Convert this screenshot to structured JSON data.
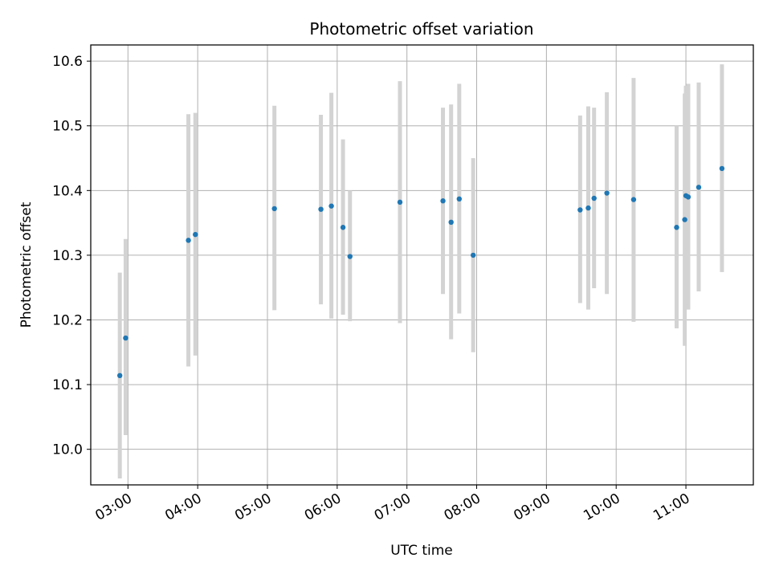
{
  "chart_data": {
    "type": "scatter",
    "title": "Photometric offset variation",
    "xlabel": "UTC time",
    "ylabel": "Photometric offset",
    "xlim": [
      "02:28",
      "11:58"
    ],
    "ylim": [
      9.945,
      10.625
    ],
    "grid": true,
    "x_ticks": [
      "03:00",
      "04:00",
      "05:00",
      "06:00",
      "07:00",
      "08:00",
      "09:00",
      "10:00",
      "11:00"
    ],
    "y_ticks": [
      10.0,
      10.1,
      10.2,
      10.3,
      10.4,
      10.5,
      10.6
    ],
    "y_tick_labels": [
      "10.0",
      "10.1",
      "10.2",
      "10.3",
      "10.4",
      "10.5",
      "10.6"
    ],
    "colors": {
      "point": "#1f77b4",
      "errorbar": "#d3d3d3",
      "grid": "#b0b0b0"
    },
    "points": [
      {
        "x": "02:53",
        "y": 10.114,
        "low": 9.955,
        "high": 10.273
      },
      {
        "x": "02:58",
        "y": 10.172,
        "low": 10.022,
        "high": 10.325
      },
      {
        "x": "03:52",
        "y": 10.323,
        "low": 10.128,
        "high": 10.518
      },
      {
        "x": "03:58",
        "y": 10.332,
        "low": 10.145,
        "high": 10.52
      },
      {
        "x": "05:06",
        "y": 10.372,
        "low": 10.215,
        "high": 10.531
      },
      {
        "x": "05:46",
        "y": 10.371,
        "low": 10.224,
        "high": 10.517
      },
      {
        "x": "05:55",
        "y": 10.376,
        "low": 10.202,
        "high": 10.551
      },
      {
        "x": "06:05",
        "y": 10.343,
        "low": 10.208,
        "high": 10.479
      },
      {
        "x": "06:11",
        "y": 10.298,
        "low": 10.198,
        "high": 10.4
      },
      {
        "x": "06:54",
        "y": 10.382,
        "low": 10.195,
        "high": 10.569
      },
      {
        "x": "07:31",
        "y": 10.384,
        "low": 10.24,
        "high": 10.528
      },
      {
        "x": "07:38",
        "y": 10.351,
        "low": 10.17,
        "high": 10.533
      },
      {
        "x": "07:45",
        "y": 10.387,
        "low": 10.21,
        "high": 10.565
      },
      {
        "x": "07:57",
        "y": 10.3,
        "low": 10.15,
        "high": 10.45
      },
      {
        "x": "09:29",
        "y": 10.37,
        "low": 10.226,
        "high": 10.516
      },
      {
        "x": "09:36",
        "y": 10.373,
        "low": 10.216,
        "high": 10.53
      },
      {
        "x": "09:41",
        "y": 10.388,
        "low": 10.249,
        "high": 10.528
      },
      {
        "x": "09:52",
        "y": 10.396,
        "low": 10.24,
        "high": 10.552
      },
      {
        "x": "10:15",
        "y": 10.386,
        "low": 10.197,
        "high": 10.574
      },
      {
        "x": "10:52",
        "y": 10.343,
        "low": 10.187,
        "high": 10.5
      },
      {
        "x": "10:59",
        "y": 10.355,
        "low": 10.16,
        "high": 10.55
      },
      {
        "x": "11:00",
        "y": 10.392,
        "low": 10.222,
        "high": 10.562
      },
      {
        "x": "11:02",
        "y": 10.39,
        "low": 10.216,
        "high": 10.565
      },
      {
        "x": "11:11",
        "y": 10.405,
        "low": 10.244,
        "high": 10.567
      },
      {
        "x": "11:31",
        "y": 10.434,
        "low": 10.274,
        "high": 10.595
      }
    ]
  }
}
